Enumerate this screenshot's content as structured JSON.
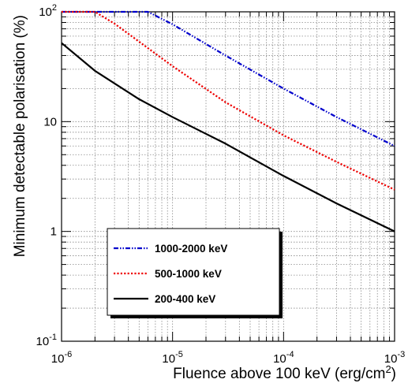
{
  "chart_data": {
    "type": "line",
    "title": "",
    "xlabel": "Fluence above 100 keV (erg/cm",
    "xlabel_sup": "2",
    "xlabel_close": ")",
    "ylabel": "Minimum detectable polarisation (%)",
    "xscale": "log",
    "yscale": "log",
    "xlim": [
      1e-06,
      0.001
    ],
    "ylim": [
      0.1,
      100
    ],
    "grid": true,
    "legend_position": "lower-left",
    "x_ticks": [
      {
        "base": "10",
        "exp": "-6"
      },
      {
        "base": "10",
        "exp": "-5"
      },
      {
        "base": "10",
        "exp": "-4"
      },
      {
        "base": "10",
        "exp": "-3"
      }
    ],
    "y_ticks": [
      {
        "base": "10",
        "exp": "-1"
      },
      {
        "base": "1",
        "exp": ""
      },
      {
        "base": "10",
        "exp": ""
      },
      {
        "base": "10",
        "exp": "2"
      }
    ],
    "series": [
      {
        "name": "1000-2000 keV",
        "color": "#0000cc",
        "dash": "dashdot",
        "x": [
          1e-06,
          6e-06,
          1e-05,
          3e-05,
          0.0001,
          0.0003,
          0.001
        ],
        "y": [
          100,
          100,
          77,
          40,
          20,
          11,
          6
        ]
      },
      {
        "name": "500-1000 keV",
        "color": "#ee0000",
        "dash": "dotted",
        "x": [
          1e-06,
          2e-06,
          3e-06,
          1e-05,
          3e-05,
          0.0001,
          0.0003,
          0.001
        ],
        "y": [
          100,
          100,
          78,
          32,
          15,
          7.5,
          4.3,
          2.4
        ]
      },
      {
        "name": "200-400 keV",
        "color": "#000000",
        "dash": "solid",
        "x": [
          1e-06,
          2e-06,
          5e-06,
          1e-05,
          3e-05,
          0.0001,
          0.0003,
          0.001
        ],
        "y": [
          52,
          29,
          16,
          11,
          6.3,
          3.2,
          1.8,
          1.0
        ]
      }
    ]
  }
}
